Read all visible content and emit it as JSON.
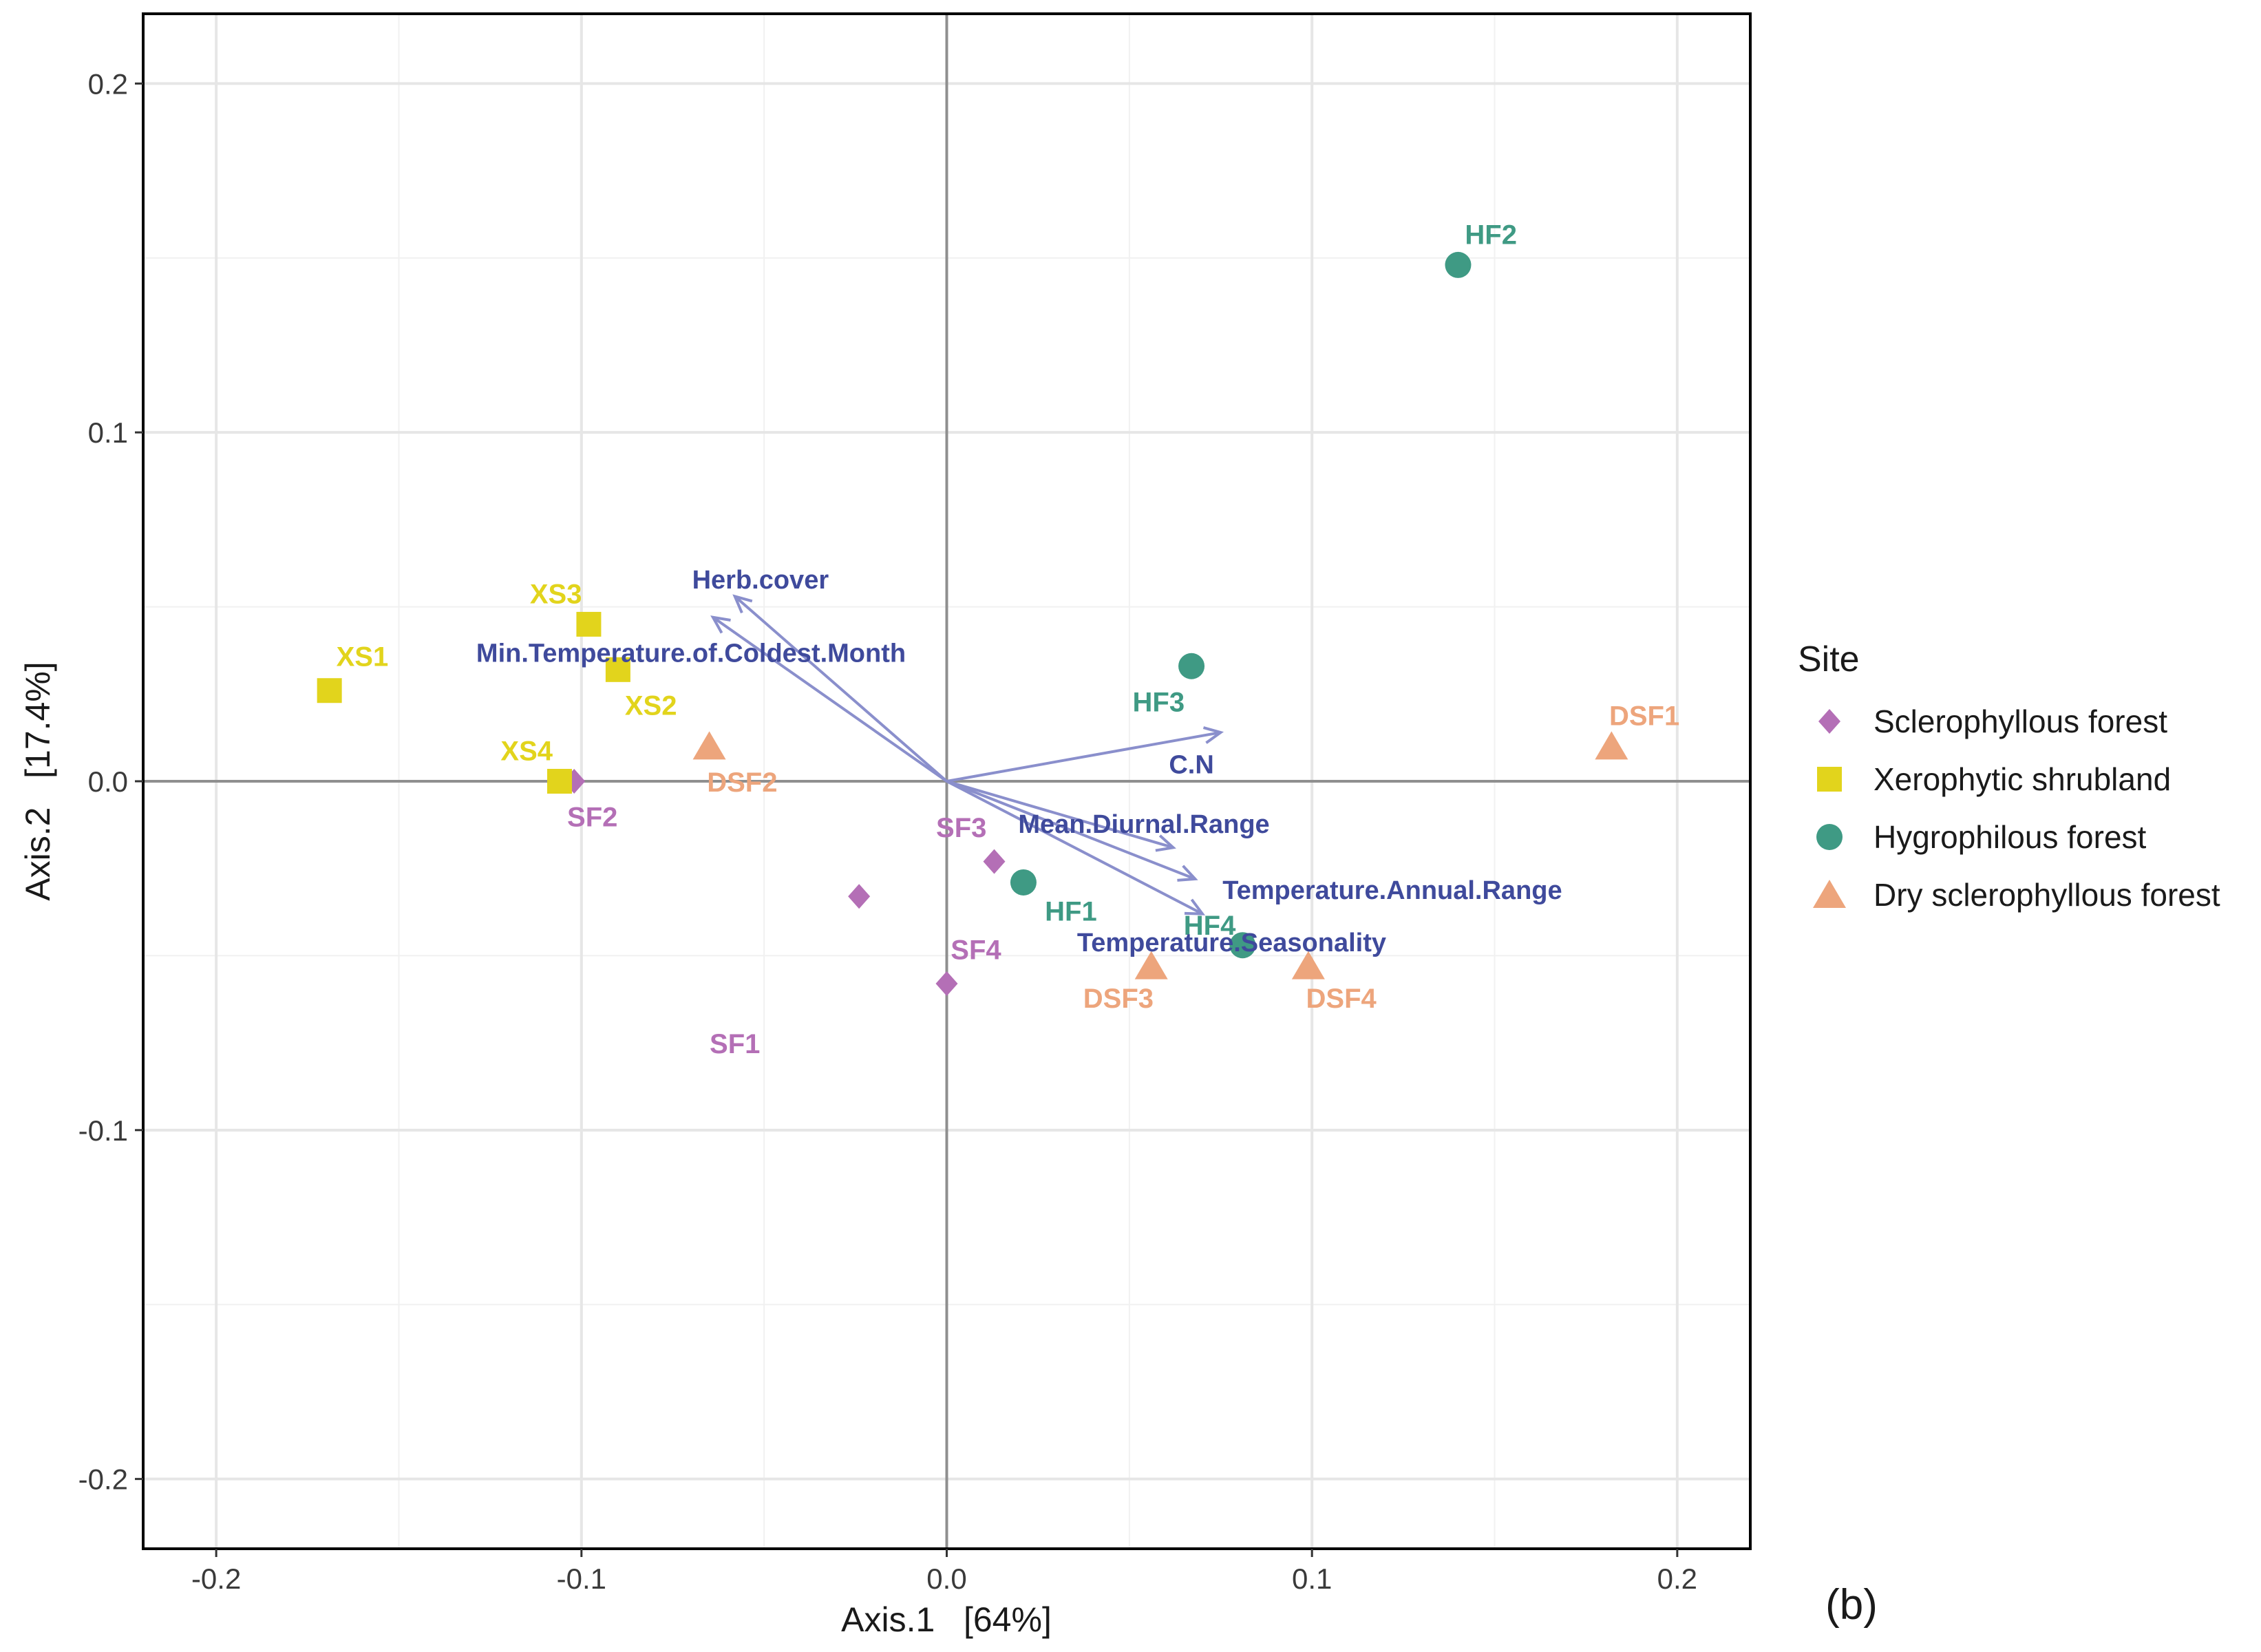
{
  "chart_data": {
    "type": "scatter",
    "subtype": "PCoA biplot with environmental vectors",
    "panel_label": "(b)",
    "xlabel": "Axis.1   [64%]",
    "ylabel": "Axis.2   [17.4%]",
    "xlim": [
      -0.22,
      0.22
    ],
    "ylim": [
      -0.22,
      0.22
    ],
    "x_ticks": [
      -0.2,
      -0.1,
      0.0,
      0.1,
      0.2
    ],
    "x_tick_labels": [
      "-0.2",
      "-0.1",
      "0.0",
      "0.1",
      "0.2"
    ],
    "y_ticks": [
      -0.2,
      -0.1,
      0.0,
      0.1,
      0.2
    ],
    "y_tick_labels": [
      "-0.2",
      "-0.1",
      "0.0",
      "0.1",
      "0.2"
    ],
    "grid": true,
    "legend": {
      "title": "Site",
      "placement": "right",
      "entries": [
        {
          "label": "Sclerophyllous forest",
          "shape": "diamond",
          "color": "#B46FB6"
        },
        {
          "label": "Xerophytic shrubland",
          "shape": "square",
          "color": "#E2D41C"
        },
        {
          "label": "Hygrophilous forest",
          "shape": "circle",
          "color": "#3F9A84"
        },
        {
          "label": "Dry sclerophyllous forest",
          "shape": "triangle",
          "color": "#EDA57C"
        }
      ]
    },
    "series": [
      {
        "name": "Sclerophyllous forest",
        "shape": "diamond",
        "color": "#B46FB6",
        "points": [
          {
            "label": "SF1",
            "x": -0.024,
            "y": -0.033,
            "label_dx": -0.034,
            "label_dy": -0.042
          },
          {
            "label": "SF2",
            "x": -0.102,
            "y": 0.0,
            "label_dx": 0.005,
            "label_dy": -0.01
          },
          {
            "label": "SF3",
            "x": 0.013,
            "y": -0.023,
            "label_dx": -0.009,
            "label_dy": 0.01
          },
          {
            "label": "SF4",
            "x": 0.0,
            "y": -0.058,
            "label_dx": 0.008,
            "label_dy": 0.01
          }
        ]
      },
      {
        "name": "Xerophytic shrubland",
        "shape": "square",
        "color": "#E2D41C",
        "points": [
          {
            "label": "XS1",
            "x": -0.169,
            "y": 0.026,
            "label_dx": 0.009,
            "label_dy": 0.01
          },
          {
            "label": "XS2",
            "x": -0.09,
            "y": 0.032,
            "label_dx": 0.009,
            "label_dy": -0.01
          },
          {
            "label": "XS3",
            "x": -0.098,
            "y": 0.045,
            "label_dx": -0.009,
            "label_dy": 0.009
          },
          {
            "label": "XS4",
            "x": -0.106,
            "y": 0.0,
            "label_dx": -0.009,
            "label_dy": 0.009
          }
        ]
      },
      {
        "name": "Hygrophilous forest",
        "shape": "circle",
        "color": "#3F9A84",
        "points": [
          {
            "label": "HF1",
            "x": 0.021,
            "y": -0.029,
            "label_dx": 0.013,
            "label_dy": -0.008
          },
          {
            "label": "HF2",
            "x": 0.14,
            "y": 0.148,
            "label_dx": 0.009,
            "label_dy": 0.009
          },
          {
            "label": "HF3",
            "x": 0.067,
            "y": 0.033,
            "label_dx": -0.009,
            "label_dy": -0.01
          },
          {
            "label": "HF4",
            "x": 0.081,
            "y": -0.047,
            "label_dx": -0.009,
            "label_dy": 0.006
          }
        ]
      },
      {
        "name": "Dry sclerophyllous forest",
        "shape": "triangle",
        "color": "#EDA57C",
        "points": [
          {
            "label": "DSF1",
            "x": 0.182,
            "y": 0.01,
            "label_dx": 0.009,
            "label_dy": 0.009
          },
          {
            "label": "DSF2",
            "x": -0.065,
            "y": 0.01,
            "label_dx": 0.009,
            "label_dy": -0.01
          },
          {
            "label": "DSF3",
            "x": 0.056,
            "y": -0.053,
            "label_dx": -0.009,
            "label_dy": -0.009
          },
          {
            "label": "DSF4",
            "x": 0.099,
            "y": -0.053,
            "label_dx": 0.009,
            "label_dy": -0.009
          }
        ]
      }
    ],
    "vectors": {
      "color": "#8A8FCC",
      "label_color": "#3F4A9C",
      "origin": [
        0.0,
        0.0
      ],
      "items": [
        {
          "label": "Herb.cover",
          "x": -0.058,
          "y": 0.053,
          "label_x": -0.051,
          "label_y": 0.058
        },
        {
          "label": "Min.Temperature.of.Coldest.Month",
          "x": -0.064,
          "y": 0.047,
          "label_x": -0.07,
          "label_y": 0.037
        },
        {
          "label": "C.N",
          "x": 0.075,
          "y": 0.014,
          "label_x": 0.067,
          "label_y": 0.005
        },
        {
          "label": "Mean.Diurnal.Range",
          "x": 0.062,
          "y": -0.019,
          "label_x": 0.054,
          "label_y": -0.012
        },
        {
          "label": "Temperature.Annual.Range",
          "x": 0.068,
          "y": -0.028,
          "label_x": 0.122,
          "label_y": -0.031
        },
        {
          "label": "Temperature.Seasonality",
          "x": 0.07,
          "y": -0.038,
          "label_x": 0.078,
          "label_y": -0.046
        }
      ]
    }
  }
}
